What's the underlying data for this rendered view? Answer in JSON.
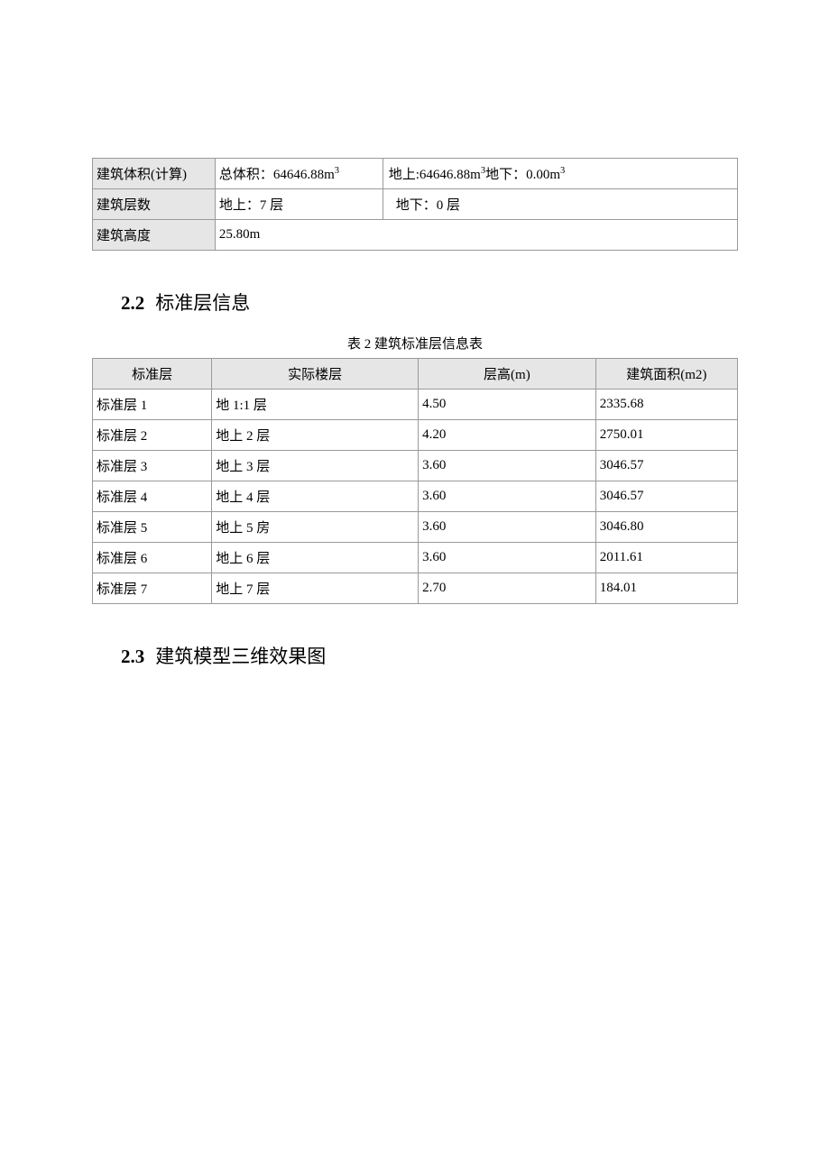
{
  "table1": {
    "rows": [
      {
        "label": "建筑体积(计算)",
        "col2": "总体积：64646.88m",
        "col2_sup": "3",
        "col3_a": "地上:64646.88m",
        "col3_a_sup": "3",
        "col3_b": "地下：0.00m",
        "col3_b_sup": "3",
        "split": true
      },
      {
        "label": "建筑层数",
        "col2": "地上：7 层",
        "col3": "地下：0 层",
        "col3_pad": true
      },
      {
        "label": "建筑高度",
        "colspan": "25.80m"
      }
    ]
  },
  "heading_2_2": {
    "num": "2.2",
    "text": "标准层信息"
  },
  "table2": {
    "caption": "表 2 建筑标准层信息表",
    "headers": [
      "标准层",
      "实际楼层",
      "层高(m)",
      "建筑面积(m2)"
    ],
    "rows": [
      [
        "标准层 1",
        "地 1:1 层",
        "4.50",
        "2335.68"
      ],
      [
        "标准层 2",
        "地上 2 层",
        "4.20",
        "2750.01"
      ],
      [
        "标准层 3",
        "地上 3 层",
        "3.60",
        "3046.57"
      ],
      [
        "标准层 4",
        "地上 4 层",
        "3.60",
        "3046.57"
      ],
      [
        "标准层 5",
        "地上 5 房",
        "3.60",
        "3046.80"
      ],
      [
        "标准层 6",
        "地上 6 层",
        "3.60",
        "2011.61"
      ],
      [
        "标准层 7",
        "地上 7 层",
        "2.70",
        "184.01"
      ]
    ]
  },
  "heading_2_3": {
    "num": "2.3",
    "text": "建筑模型三维效果图"
  }
}
